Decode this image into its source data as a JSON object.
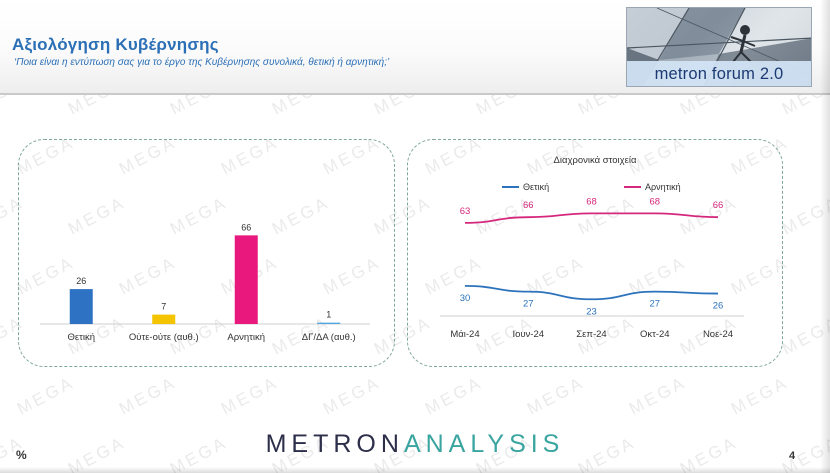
{
  "header": {
    "title": "Αξιολόγηση Κυβέρνησης",
    "subtitle": "‘Ποια είναι η εντύπωση σας για το έργο της Κυβέρνησης συνολικά, θετική ή αρνητική;’",
    "forum_label": "metron forum 2.0"
  },
  "footer": {
    "logo_part_a": "METRON",
    "logo_part_b": "ANALYSIS",
    "percent_symbol": "%",
    "page_number": "4"
  },
  "watermark_text": "MEGA",
  "colors": {
    "title_blue": "#2b6fb6",
    "positive": "#2e72c4",
    "neither": "#f4c400",
    "negative": "#e8187c",
    "dk_na": "#52a6df",
    "line_positive": "#2c73bc",
    "line_negative": "#d5287d",
    "panel_border": "#7fa897",
    "logo_dark": "#2c2e4a",
    "logo_teal": "#3aa5a0"
  },
  "chart_data": [
    {
      "type": "bar",
      "title": "",
      "categories": [
        "Θετική",
        "Ούτε-ούτε (αυθ.)",
        "Αρνητική",
        "ΔΓ/ΔΑ (αυθ.)"
      ],
      "values": [
        26,
        7,
        66,
        1
      ],
      "value_labels": [
        "26",
        "7",
        "66",
        "1"
      ],
      "colors": [
        "#2e72c4",
        "#f4c400",
        "#e8187c",
        "#52a6df"
      ],
      "ylim": [
        0,
        70
      ],
      "grid": false,
      "xlabel": "",
      "ylabel": ""
    },
    {
      "type": "line",
      "title": "Διαχρονικά στοιχεία",
      "categories": [
        "Μάι-24",
        "Ιουν-24",
        "Σεπ-24",
        "Οκτ-24",
        "Νοε-24"
      ],
      "series": [
        {
          "name": "Θετική",
          "values": [
            30,
            27,
            23,
            27,
            26
          ],
          "value_labels": [
            "30",
            "27",
            "23",
            "27",
            "26"
          ],
          "color": "#2c73bc"
        },
        {
          "name": "Αρνητική",
          "values": [
            63,
            66,
            68,
            68,
            66
          ],
          "value_labels": [
            "63",
            "66",
            "68",
            "68",
            "66"
          ],
          "color": "#d5287d"
        }
      ],
      "legend": "top",
      "grid": false,
      "xlabel": "",
      "ylabel": ""
    }
  ]
}
